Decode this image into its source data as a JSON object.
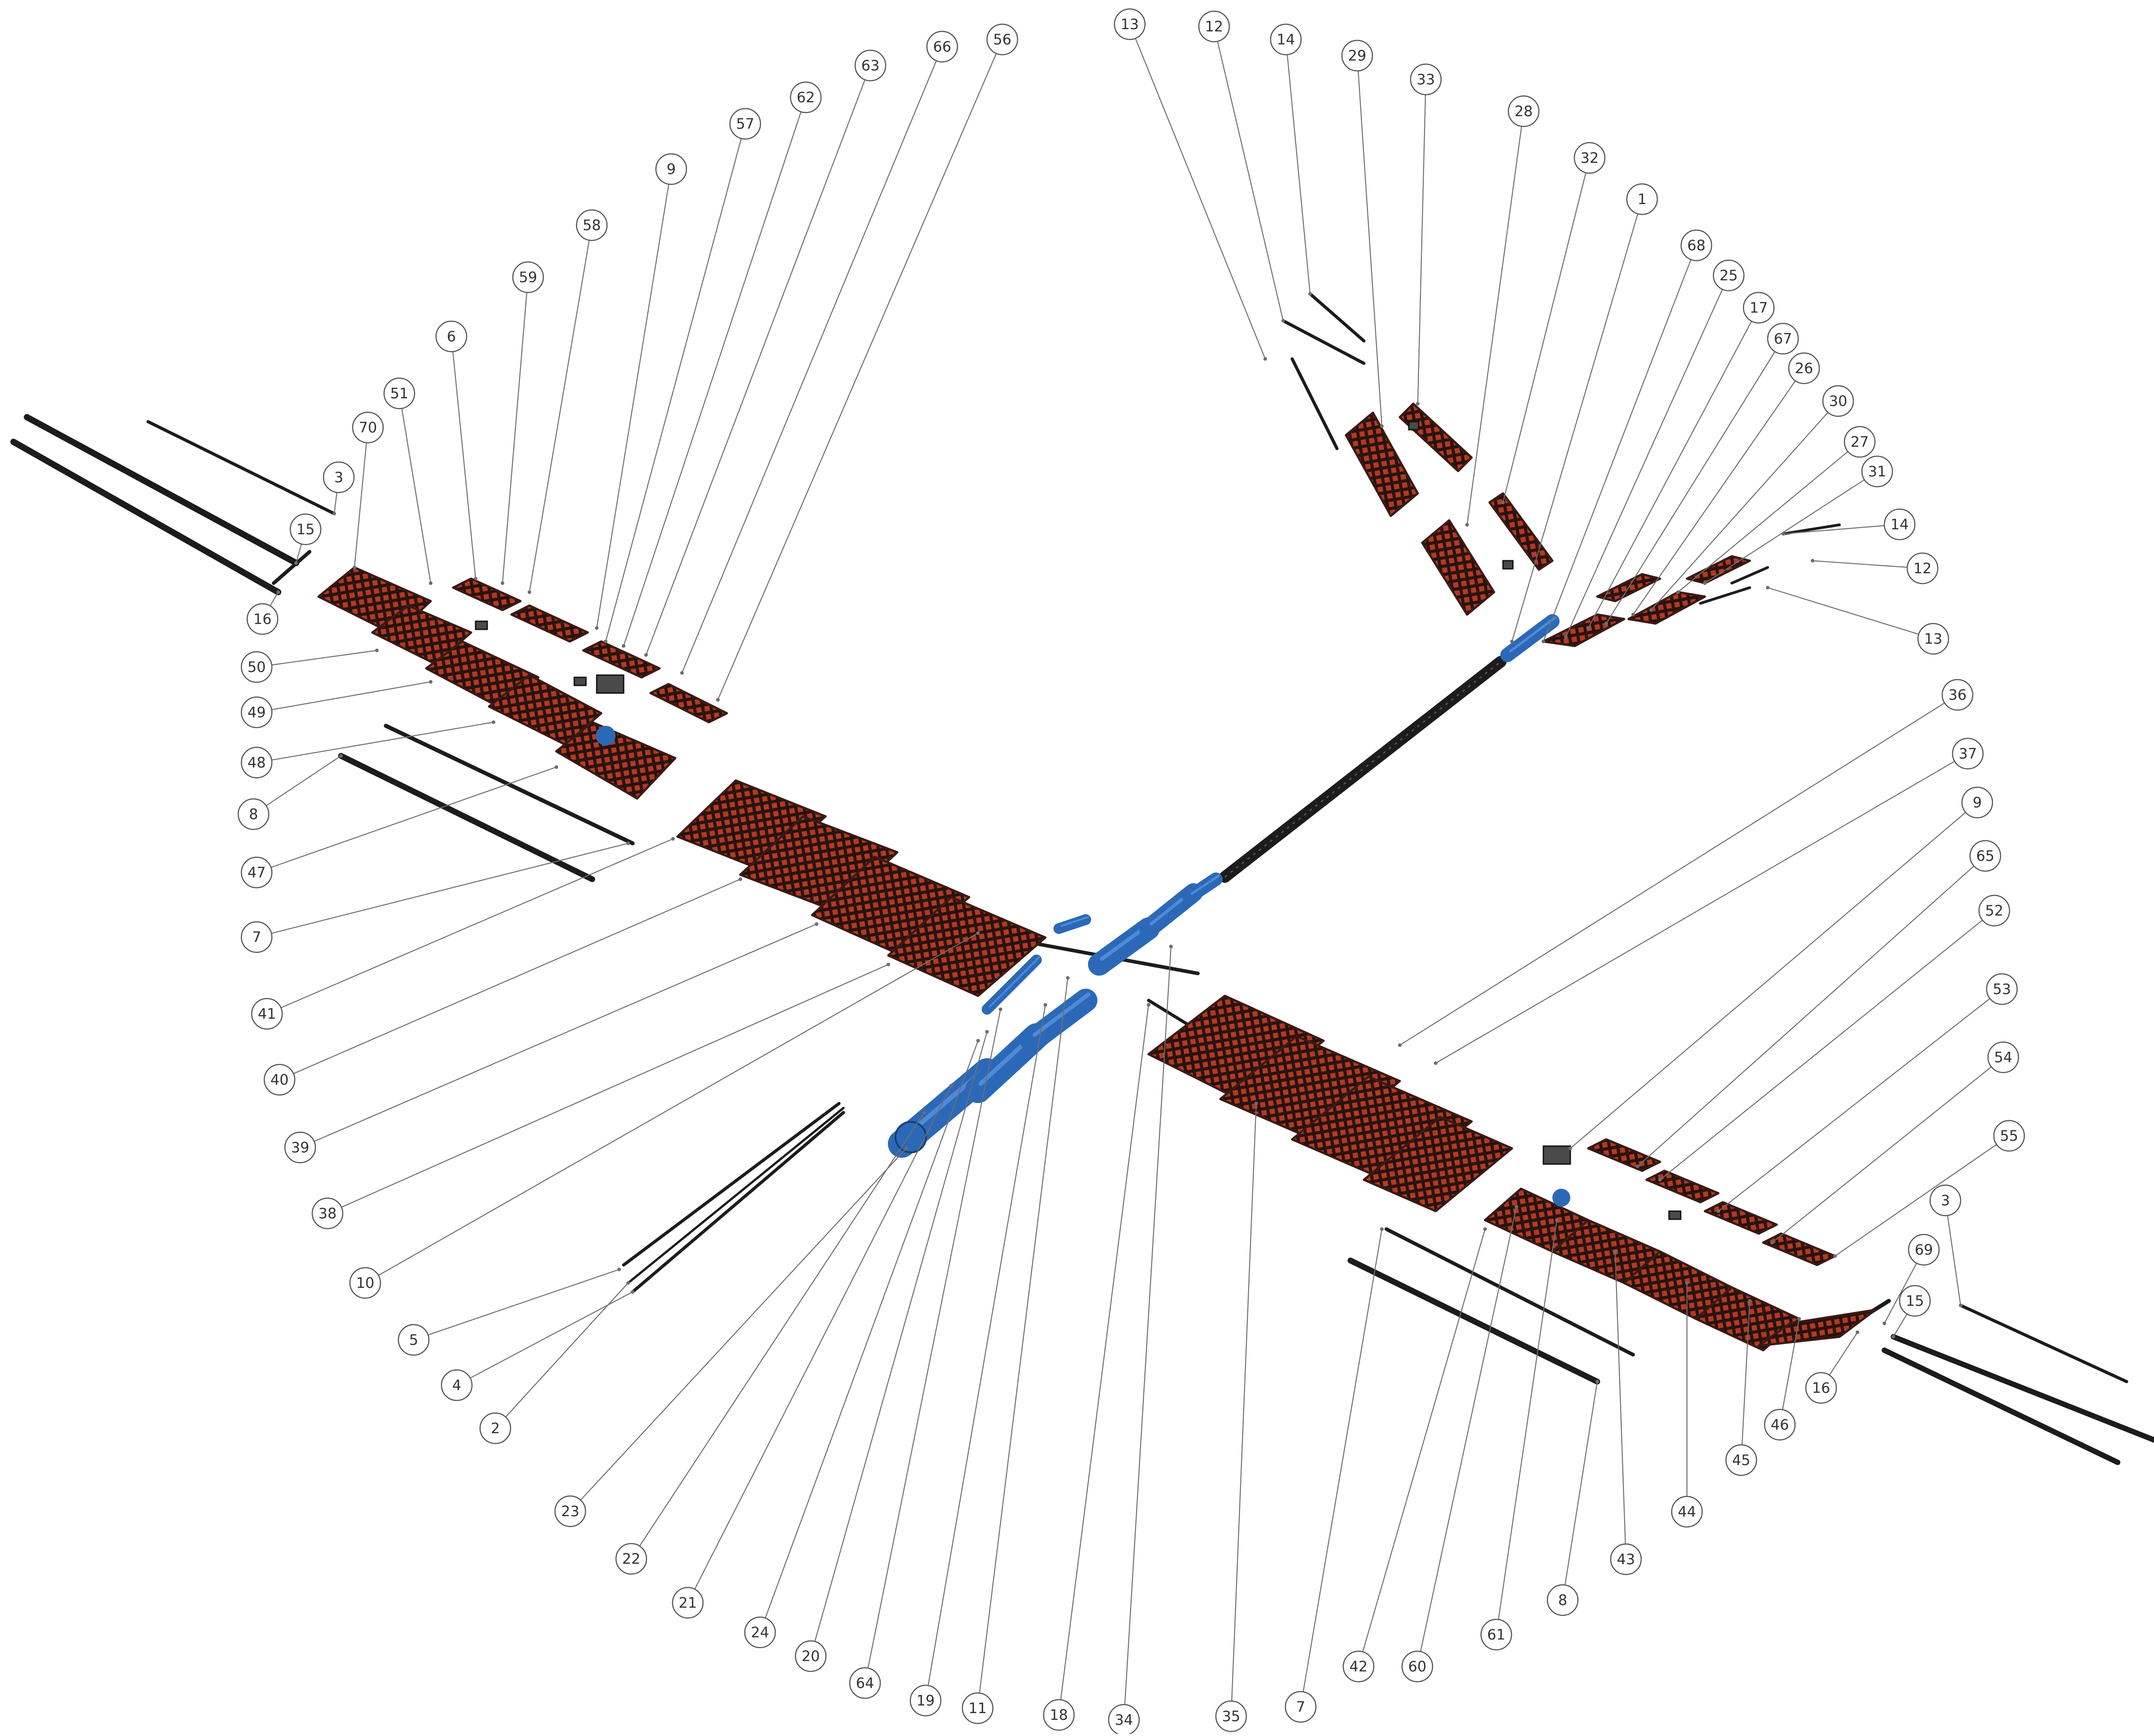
{
  "diagram": {
    "type": "exploded-assembly-drawing",
    "colors": {
      "background": "#ffffff",
      "leader_line": "#6e6e6e",
      "balloon_stroke": "#555555",
      "balloon_text": "#333333",
      "rib_red": "#b23a23",
      "rib_dark": "#3a1a14",
      "rod_black": "#1c1c1c",
      "fuselage_blue": "#2b69b8",
      "fuselage_highlight": "#5a93dd",
      "servo_gray": "#4a4a4a"
    },
    "balloons": [
      "13",
      "12",
      "14",
      "29",
      "33",
      "28",
      "32",
      "1",
      "68",
      "25",
      "17",
      "67",
      "26",
      "30",
      "27",
      "31",
      "14",
      "12",
      "13",
      "56",
      "66",
      "63",
      "62",
      "57",
      "9",
      "58",
      "59",
      "6",
      "51",
      "70",
      "3",
      "15",
      "16",
      "50",
      "49",
      "48",
      "8",
      "47",
      "7",
      "41",
      "40",
      "39",
      "38",
      "10",
      "5",
      "4",
      "2",
      "36",
      "37",
      "9",
      "65",
      "52",
      "53",
      "54",
      "55",
      "3",
      "69",
      "15",
      "16",
      "46",
      "45",
      "44",
      "43",
      "8",
      "61",
      "60",
      "42",
      "7",
      "35",
      "34",
      "18",
      "11",
      "19",
      "64",
      "20",
      "24",
      "21",
      "22",
      "23"
    ]
  }
}
